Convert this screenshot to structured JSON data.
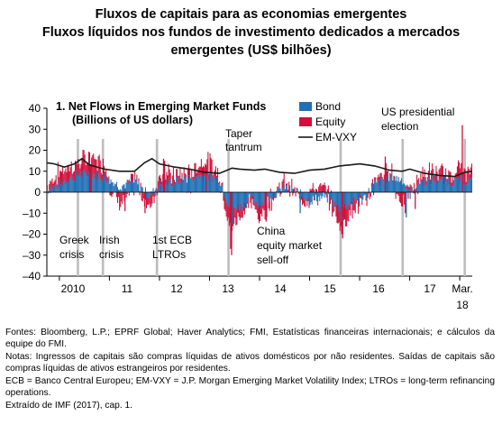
{
  "figure": {
    "title_line1": "Fluxos de capitais para as economias emergentes",
    "title_line2": "Fluxos líquidos nos fundos de investimento dedicados a mercados",
    "title_line3": "emergentes (US$ bilhões)"
  },
  "notes": {
    "sources": "Fontes: Bloomberg, L.P.; EPRF Global; Haver Analytics; FMI, Estatísticas financeiras internacionais; e cálculos da equipe do FMI.",
    "notes": "Notas: Ingressos de capitais são compras líquidas de ativos domésticos por não residentes. Saídas de capitais são compras líquidas de ativos estrangeiros por residentes.",
    "abbrev": "ECB = Banco Central Europeu; EM-VXY = J.P. Morgan Emerging Market Volatility Index; LTROs = long-term refinancing operations.",
    "extract": "Extraído de IMF (2017), cap. 1."
  },
  "colors": {
    "bond": "#1f6fb5",
    "equity": "#d0103a",
    "emvxy": "#1a1a1a",
    "event_line": "#bdbdbd"
  },
  "chart_data": {
    "type": "bar",
    "title_line1": "1. Net Flows in Emerging Market Funds",
    "title_line2": "(Billions of US dollars)",
    "ylim": [
      -40,
      40
    ],
    "yticks": [
      "40",
      "30",
      "20",
      "10",
      "0",
      "–10",
      "–20",
      "–30",
      "–40"
    ],
    "x_labels": [
      "2010",
      "11",
      "12",
      "13",
      "14",
      "15",
      "16",
      "17",
      "Mar.",
      "18"
    ],
    "legend": [
      "Bond",
      "Equity",
      "EM-VXY"
    ],
    "annotations": {
      "taper_1": "Taper",
      "taper_2": "tantrum",
      "us_1": "US presidential",
      "us_2": "election",
      "greek_1": "Greek",
      "greek_2": "crisis",
      "irish_1": "Irish",
      "irish_2": "crisis",
      "ecb_1": "1st ECB",
      "ecb_2": "LTROs",
      "china_1": "China",
      "china_2": "equity market",
      "china_3": "sell-off"
    },
    "x_years": [
      2010,
      2011,
      2012,
      2013,
      2014,
      2015,
      2016,
      2017,
      2018
    ],
    "event_dates": [
      2010.37,
      2010.87,
      2011.95,
      2013.38,
      2015.62,
      2016.86,
      2018.1
    ],
    "weekly_range": [
      2009.75,
      2018.25
    ],
    "series": [
      {
        "name": "Bond",
        "anchors": [
          [
            2009.75,
            1
          ],
          [
            2010.0,
            4
          ],
          [
            2010.3,
            8
          ],
          [
            2010.6,
            9
          ],
          [
            2010.9,
            7
          ],
          [
            2011.2,
            3
          ],
          [
            2011.5,
            5
          ],
          [
            2011.8,
            -2
          ],
          [
            2012.0,
            4
          ],
          [
            2012.3,
            5
          ],
          [
            2012.6,
            7
          ],
          [
            2012.9,
            8
          ],
          [
            2013.2,
            6
          ],
          [
            2013.4,
            -8
          ],
          [
            2013.6,
            -7
          ],
          [
            2013.8,
            -3
          ],
          [
            2014.0,
            -6
          ],
          [
            2014.2,
            -2
          ],
          [
            2014.5,
            2
          ],
          [
            2014.8,
            -1
          ],
          [
            2015.0,
            -4
          ],
          [
            2015.3,
            -2
          ],
          [
            2015.6,
            -8
          ],
          [
            2015.9,
            -4
          ],
          [
            2016.1,
            -2
          ],
          [
            2016.3,
            4
          ],
          [
            2016.6,
            7
          ],
          [
            2016.85,
            6
          ],
          [
            2017.0,
            -1
          ],
          [
            2017.2,
            5
          ],
          [
            2017.5,
            6
          ],
          [
            2017.8,
            5
          ],
          [
            2018.0,
            6
          ],
          [
            2018.25,
            5
          ]
        ]
      },
      {
        "name": "Equity",
        "anchors": [
          [
            2009.75,
            2
          ],
          [
            2010.0,
            6
          ],
          [
            2010.3,
            5
          ],
          [
            2010.6,
            8
          ],
          [
            2010.9,
            6
          ],
          [
            2011.2,
            -6
          ],
          [
            2011.5,
            2
          ],
          [
            2011.8,
            -6
          ],
          [
            2012.0,
            5
          ],
          [
            2012.3,
            3
          ],
          [
            2012.6,
            2
          ],
          [
            2012.9,
            8
          ],
          [
            2013.2,
            2
          ],
          [
            2013.4,
            -10
          ],
          [
            2013.6,
            -4
          ],
          [
            2013.8,
            -2
          ],
          [
            2014.0,
            -6
          ],
          [
            2014.2,
            -2
          ],
          [
            2014.5,
            3
          ],
          [
            2014.8,
            -2
          ],
          [
            2015.0,
            1
          ],
          [
            2015.3,
            2
          ],
          [
            2015.6,
            -8
          ],
          [
            2015.9,
            -3
          ],
          [
            2016.1,
            -3
          ],
          [
            2016.3,
            2
          ],
          [
            2016.6,
            4
          ],
          [
            2016.85,
            -5
          ],
          [
            2017.0,
            1
          ],
          [
            2017.2,
            3
          ],
          [
            2017.5,
            4
          ],
          [
            2017.8,
            3
          ],
          [
            2018.0,
            6
          ],
          [
            2018.25,
            3
          ]
        ]
      },
      {
        "name": "EM-VXY",
        "points": [
          [
            2009.75,
            14
          ],
          [
            2009.9,
            13.5
          ],
          [
            2010.1,
            12
          ],
          [
            2010.3,
            13.5
          ],
          [
            2010.45,
            16
          ],
          [
            2010.6,
            13
          ],
          [
            2010.9,
            11
          ],
          [
            2011.2,
            10
          ],
          [
            2011.5,
            10
          ],
          [
            2011.7,
            14
          ],
          [
            2011.85,
            16
          ],
          [
            2012.0,
            13.5
          ],
          [
            2012.3,
            12
          ],
          [
            2012.6,
            11
          ],
          [
            2012.9,
            9.5
          ],
          [
            2013.2,
            9
          ],
          [
            2013.45,
            11.5
          ],
          [
            2013.6,
            11
          ],
          [
            2013.9,
            10.5
          ],
          [
            2014.1,
            11
          ],
          [
            2014.4,
            9.5
          ],
          [
            2014.7,
            9
          ],
          [
            2015.0,
            10.5
          ],
          [
            2015.3,
            11
          ],
          [
            2015.6,
            12.5
          ],
          [
            2015.8,
            13
          ],
          [
            2016.0,
            13.5
          ],
          [
            2016.3,
            12.5
          ],
          [
            2016.6,
            10.5
          ],
          [
            2016.85,
            10
          ],
          [
            2017.0,
            11
          ],
          [
            2017.3,
            9
          ],
          [
            2017.6,
            8
          ],
          [
            2017.9,
            7.5
          ],
          [
            2018.1,
            9.5
          ],
          [
            2018.25,
            10
          ]
        ]
      }
    ],
    "spikes": [
      {
        "date": 2018.04,
        "series": "Equity",
        "value": 32
      },
      {
        "date": 2012.07,
        "series": "Equity",
        "value": 16
      },
      {
        "date": 2012.09,
        "series": "Equity",
        "value": 15
      },
      {
        "date": 2012.92,
        "series": "Equity",
        "value": 13
      },
      {
        "date": 2013.41,
        "series": "Equity",
        "value": -27
      },
      {
        "date": 2013.43,
        "series": "Equity",
        "value": -30
      },
      {
        "date": 2013.45,
        "series": "Bond",
        "value": -15
      },
      {
        "date": 2015.63,
        "series": "Equity",
        "value": -20
      },
      {
        "date": 2015.65,
        "series": "Equity",
        "value": -22
      },
      {
        "date": 2015.62,
        "series": "Bond",
        "value": -14
      },
      {
        "date": 2016.5,
        "series": "Equity",
        "value": 17
      },
      {
        "date": 2016.9,
        "series": "Equity",
        "value": -10
      },
      {
        "date": 2016.92,
        "series": "Bond",
        "value": -12
      },
      {
        "date": 2010.6,
        "series": "Equity",
        "value": 13
      },
      {
        "date": 2010.62,
        "series": "Equity",
        "value": 13
      },
      {
        "date": 2011.3,
        "series": "Equity",
        "value": -9
      },
      {
        "date": 2011.7,
        "series": "Equity",
        "value": -10
      },
      {
        "date": 2014.1,
        "series": "Equity",
        "value": -13
      },
      {
        "date": 2014.12,
        "series": "Equity",
        "value": -14
      },
      {
        "date": 2014.8,
        "series": "Bond",
        "value": -10
      },
      {
        "date": 2017.1,
        "series": "Equity",
        "value": -8
      }
    ]
  }
}
